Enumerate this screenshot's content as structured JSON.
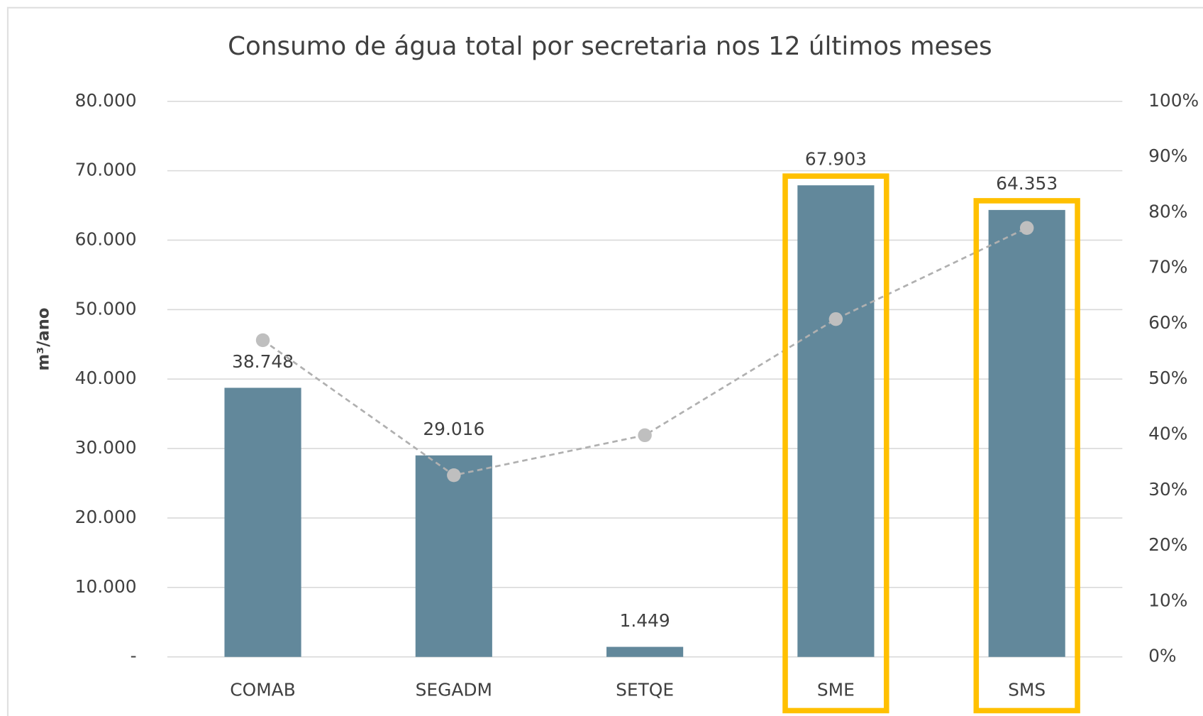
{
  "chart_data": {
    "type": "bar",
    "title": "Consumo de água total por secretaria nos 12 últimos meses",
    "y_label": "m³/ano",
    "categories": [
      "COMAB",
      "SEGADM",
      "SETQE",
      "SME",
      "SMS"
    ],
    "series": [
      {
        "type": "bar",
        "color": "#62889b",
        "values": [
          38748,
          29016,
          1449,
          67903,
          64353
        ],
        "value_labels": [
          "38.748",
          "29.016",
          "1.449",
          "67.903",
          "64.353"
        ]
      },
      {
        "type": "line",
        "axis": "y2",
        "color": "#b0b0b0",
        "marker_color": "#bfbfbf",
        "dashed": true,
        "values": [
          57.0,
          32.7,
          39.9,
          60.8,
          77.2
        ]
      }
    ],
    "ylim": [
      0,
      80000
    ],
    "yticks": [
      {
        "value": 0,
        "label": "-"
      },
      {
        "value": 10000,
        "label": "10.000"
      },
      {
        "value": 20000,
        "label": "20.000"
      },
      {
        "value": 30000,
        "label": "30.000"
      },
      {
        "value": 40000,
        "label": "40.000"
      },
      {
        "value": 50000,
        "label": "50.000"
      },
      {
        "value": 60000,
        "label": "60.000"
      },
      {
        "value": 70000,
        "label": "70.000"
      },
      {
        "value": 80000,
        "label": "80.000"
      }
    ],
    "y2lim": [
      0,
      100
    ],
    "y2ticks": [
      {
        "value": 0,
        "label": "0%"
      },
      {
        "value": 10,
        "label": "10%"
      },
      {
        "value": 20,
        "label": "20%"
      },
      {
        "value": 30,
        "label": "30%"
      },
      {
        "value": 40,
        "label": "40%"
      },
      {
        "value": 50,
        "label": "50%"
      },
      {
        "value": 60,
        "label": "60%"
      },
      {
        "value": 70,
        "label": "70%"
      },
      {
        "value": 80,
        "label": "80%"
      },
      {
        "value": 90,
        "label": "90%"
      },
      {
        "value": 100,
        "label": "100%"
      }
    ],
    "grid": true,
    "highlighted_categories": [
      "SME",
      "SMS"
    ],
    "highlight_color": "#ffc000"
  }
}
